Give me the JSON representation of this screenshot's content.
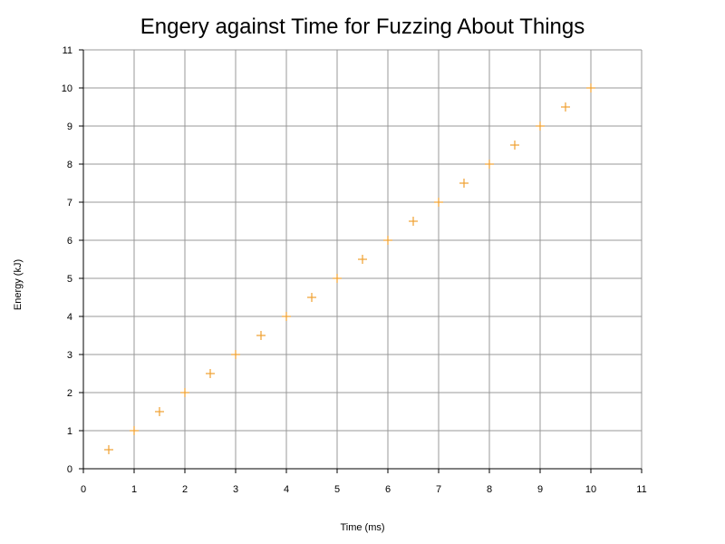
{
  "chart_data": {
    "type": "scatter",
    "title": "Engery against Time for Fuzzing About Things",
    "xlabel": "Time (ms)",
    "ylabel": "Energy (kJ)",
    "xlim": [
      0,
      11
    ],
    "ylim": [
      0,
      11
    ],
    "xticks": [
      "0",
      "1",
      "2",
      "3",
      "4",
      "5",
      "6",
      "7",
      "8",
      "9",
      "10",
      "11"
    ],
    "yticks": [
      "0",
      "1",
      "2",
      "3",
      "4",
      "5",
      "6",
      "7",
      "8",
      "9",
      "10",
      "11"
    ],
    "grid": true,
    "legend": "none",
    "marker": "plus",
    "color": "#f0a030",
    "series": [
      {
        "x": [
          0.5,
          1,
          1.5,
          2,
          2.5,
          3,
          3.5,
          4,
          4.5,
          5,
          5.5,
          6,
          6.5,
          7,
          7.5,
          8,
          8.5,
          9,
          9.5,
          10
        ],
        "y": [
          0.5,
          1,
          1.5,
          2,
          2.5,
          3,
          3.5,
          4,
          4.5,
          5,
          5.5,
          6,
          6.5,
          7,
          7.5,
          8,
          8.5,
          9,
          9.5,
          10
        ]
      }
    ]
  }
}
